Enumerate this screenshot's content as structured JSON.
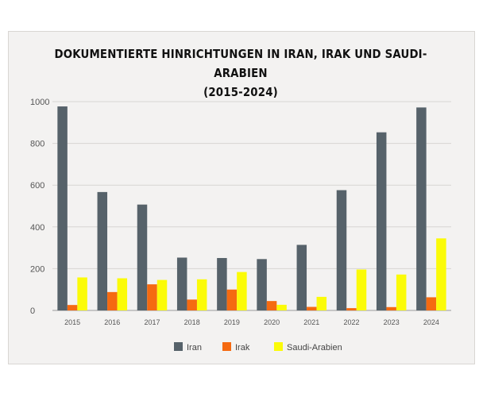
{
  "chart_data": {
    "type": "bar",
    "title": "DOKUMENTIERTE HINRICHTUNGEN IN IRAN, IRAK UND SAUDI-ARABIEN",
    "subtitle": "(2015-2024)",
    "categories": [
      "2015",
      "2016",
      "2017",
      "2018",
      "2019",
      "2020",
      "2021",
      "2022",
      "2023",
      "2024"
    ],
    "series": [
      {
        "name": "Iran",
        "color": "#56626a",
        "values": [
          977,
          567,
          507,
          253,
          251,
          246,
          314,
          576,
          853,
          972
        ]
      },
      {
        "name": "Irak",
        "color": "#f56a11",
        "values": [
          26,
          88,
          125,
          52,
          100,
          45,
          17,
          11,
          16,
          63
        ]
      },
      {
        "name": "Saudi-Arabien",
        "color": "#fbfb08",
        "values": [
          158,
          154,
          146,
          149,
          184,
          27,
          65,
          196,
          172,
          345
        ]
      }
    ],
    "y_ticks": [
      "0",
      "200",
      "400",
      "600",
      "800",
      "1000"
    ],
    "ylim": [
      0,
      1000
    ],
    "grid": "horizontal",
    "legend": "bottom-center"
  }
}
